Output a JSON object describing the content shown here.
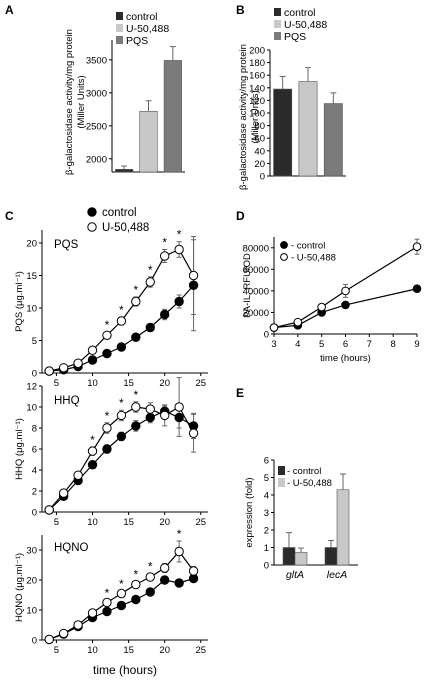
{
  "charts": [
    {
      "id": "A",
      "panel_label": "A",
      "type": "bar",
      "categories": [
        "control",
        "U-50,488",
        "PQS"
      ],
      "values": [
        1840,
        2720,
        3490
      ],
      "errors": [
        50,
        160,
        210
      ],
      "ylabel": "β-galactosidase activity/mg protein (Miller Units)",
      "ylabel_lines": [
        "β-galactosidase activity/mg protein",
        "(Miller Units)"
      ],
      "ylim": [
        1800,
        3800
      ],
      "yticks": [
        2000,
        2500,
        3000,
        3500
      ],
      "legend": [
        "control",
        "U-50,488",
        "PQS"
      ],
      "legend_position": "top-left",
      "colors": [
        "#2b2b2b",
        "#c8c8c8",
        "#7a7a7a"
      ]
    },
    {
      "id": "B",
      "panel_label": "B",
      "type": "bar",
      "categories": [
        "control",
        "U-50,488",
        "PQS"
      ],
      "values": [
        138,
        150,
        115
      ],
      "errors": [
        20,
        22,
        17
      ],
      "ylabel": "β-galactosidase activity/mg protein (Miller Units)",
      "ylabel_lines": [
        "β-galactosidase activity/mg protein",
        "(Miller Units)"
      ],
      "ylim": [
        0,
        200
      ],
      "yticks": [
        0,
        20,
        40,
        60,
        80,
        100,
        120,
        140,
        160,
        180,
        200
      ],
      "legend": [
        "control",
        "U-50,488",
        "PQS"
      ],
      "legend_position": "top",
      "colors": [
        "#2b2b2b",
        "#c8c8c8",
        "#7a7a7a"
      ]
    },
    {
      "id": "C1",
      "panel_label": "C",
      "type": "line",
      "inner_label": "PQS",
      "ylabel": "PQS (μg.ml⁻¹)",
      "xlim": [
        3,
        26
      ],
      "xticks": [
        5,
        10,
        15,
        20,
        25
      ],
      "ylim": [
        0,
        22
      ],
      "yticks": [
        0,
        5,
        10,
        15,
        20
      ],
      "series": [
        {
          "name": "control",
          "marker": "filled",
          "x": [
            4,
            6,
            8,
            10,
            12,
            14,
            16,
            18,
            20,
            22,
            24
          ],
          "y": [
            0.3,
            0.5,
            1.0,
            2.0,
            3.0,
            4.0,
            5.5,
            7.0,
            9.0,
            11.0,
            13.5
          ],
          "err": [
            0.1,
            0.1,
            0.2,
            0.3,
            0.3,
            0.4,
            0.5,
            0.6,
            0.8,
            1.0,
            7.0
          ]
        },
        {
          "name": "U-50,488",
          "marker": "open",
          "x": [
            4,
            6,
            8,
            10,
            12,
            14,
            16,
            18,
            20,
            22,
            24
          ],
          "y": [
            0.3,
            0.8,
            1.5,
            3.5,
            5.8,
            8.0,
            11.0,
            14.0,
            18.0,
            19.0,
            15.0
          ],
          "err": [
            0.1,
            0.1,
            0.2,
            0.4,
            0.5,
            0.6,
            0.7,
            0.8,
            1.0,
            1.2,
            6.0
          ]
        }
      ],
      "stars_x": [
        12,
        14,
        16,
        18,
        20,
        22
      ],
      "legend": [
        "control",
        "U-50,488"
      ]
    },
    {
      "id": "C2",
      "type": "line",
      "inner_label": "HHQ",
      "ylabel": "HHQ (μg.ml⁻¹)",
      "xlim": [
        3,
        26
      ],
      "xticks": [
        5,
        10,
        15,
        20,
        25
      ],
      "ylim": [
        0,
        12
      ],
      "yticks": [
        0,
        2,
        4,
        6,
        8,
        10,
        12
      ],
      "series": [
        {
          "name": "control",
          "marker": "filled",
          "x": [
            4,
            6,
            8,
            10,
            12,
            14,
            16,
            18,
            20,
            22,
            24
          ],
          "y": [
            0.2,
            1.5,
            3.0,
            4.5,
            6.0,
            7.2,
            8.2,
            9.0,
            9.6,
            9.0,
            8.2
          ],
          "err": [
            0.1,
            0.2,
            0.3,
            0.3,
            0.4,
            0.4,
            0.5,
            0.5,
            0.5,
            1.0,
            1.2
          ]
        },
        {
          "name": "U-50,488",
          "marker": "open",
          "x": [
            4,
            6,
            8,
            10,
            12,
            14,
            16,
            18,
            20,
            22,
            24
          ],
          "y": [
            0.2,
            1.8,
            3.5,
            5.8,
            8.0,
            9.2,
            10.0,
            9.8,
            9.2,
            10.0,
            7.5
          ],
          "err": [
            0.1,
            0.2,
            0.3,
            0.4,
            0.5,
            0.5,
            0.5,
            0.6,
            1.0,
            2.8,
            1.8
          ]
        }
      ],
      "stars_x": [
        10,
        12,
        14,
        16
      ]
    },
    {
      "id": "C3",
      "type": "line",
      "inner_label": "HQNO",
      "ylabel": "HQNO (μg.ml⁻¹)",
      "xlabel": "time (hours)",
      "xlim": [
        3,
        26
      ],
      "xticks": [
        5,
        10,
        15,
        20,
        25
      ],
      "ylim": [
        0,
        35
      ],
      "yticks": [
        0,
        10,
        20,
        30
      ],
      "series": [
        {
          "name": "control",
          "marker": "filled",
          "x": [
            4,
            6,
            8,
            10,
            12,
            14,
            16,
            18,
            20,
            22,
            24
          ],
          "y": [
            0.2,
            2.0,
            4.5,
            7.5,
            9.5,
            11.5,
            13.5,
            16.0,
            20.0,
            19.0,
            20.5
          ],
          "err": [
            0.1,
            0.2,
            0.4,
            0.6,
            0.7,
            0.8,
            0.9,
            1.0,
            1.2,
            1.0,
            1.0
          ]
        },
        {
          "name": "U-50,488",
          "marker": "open",
          "x": [
            4,
            6,
            8,
            10,
            12,
            14,
            16,
            18,
            20,
            22,
            24
          ],
          "y": [
            0.2,
            2.2,
            5.0,
            9.0,
            12.5,
            15.5,
            18.5,
            21.0,
            24.0,
            29.5,
            23.0
          ],
          "err": [
            0.1,
            0.2,
            0.4,
            0.7,
            0.8,
            0.9,
            1.0,
            1.2,
            1.5,
            3.5,
            1.5
          ]
        }
      ],
      "stars_x": [
        12,
        14,
        16,
        18,
        22
      ]
    },
    {
      "id": "D",
      "panel_label": "D",
      "type": "line",
      "ylabel": "PA-IL, RFU/OD",
      "xlabel": "time (hours)",
      "xlim": [
        3,
        9
      ],
      "xticks": [
        3,
        4,
        5,
        6,
        7,
        8,
        9
      ],
      "ylim": [
        0,
        90000
      ],
      "yticks": [
        0,
        20000,
        40000,
        60000,
        80000
      ],
      "series": [
        {
          "name": "control",
          "marker": "filled",
          "x": [
            3,
            4,
            5,
            6,
            9
          ],
          "y": [
            6000,
            8000,
            20000,
            27000,
            42000
          ],
          "err": [
            400,
            500,
            1500,
            1500,
            3000
          ]
        },
        {
          "name": "U-50,488",
          "marker": "open",
          "x": [
            3,
            4,
            5,
            6,
            9
          ],
          "y": [
            6000,
            11000,
            25000,
            40000,
            81000
          ],
          "err": [
            400,
            800,
            2500,
            6000,
            7000
          ]
        }
      ],
      "legend": [
        "control",
        "U-50,488"
      ],
      "legend_position": "top-left"
    },
    {
      "id": "E",
      "panel_label": "E",
      "type": "bar",
      "categories": [
        "gltA",
        "lecA"
      ],
      "series": [
        {
          "name": "control",
          "values": [
            1.0,
            1.0
          ],
          "errors": [
            0.85,
            0.4
          ]
        },
        {
          "name": "U-50,488",
          "values": [
            0.72,
            4.3
          ],
          "errors": [
            0.25,
            0.9
          ]
        }
      ],
      "ylabel": "expression (fold)",
      "ylim": [
        0,
        6
      ],
      "yticks": [
        0,
        1,
        2,
        3,
        4,
        5,
        6
      ],
      "legend": [
        "- control",
        "- U-50,488"
      ],
      "legend_position": "top-left",
      "colors": [
        "#2b2b2b",
        "#c8c8c8"
      ]
    }
  ]
}
